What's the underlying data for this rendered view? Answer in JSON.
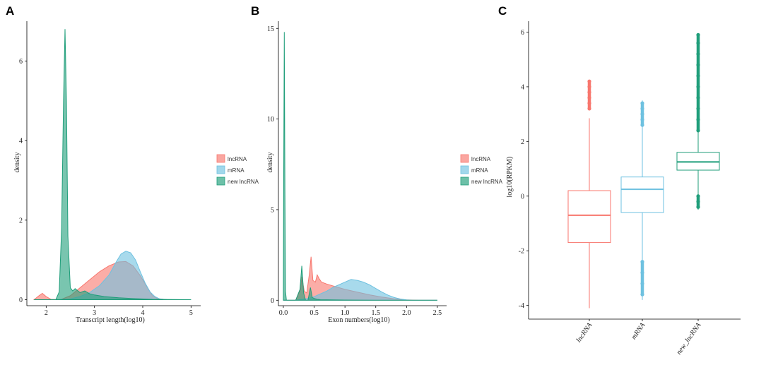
{
  "colors": {
    "lncRNA": "#F8766D",
    "mRNA": "#6EC1E0",
    "new_lncRNA": "#1F9E7A"
  },
  "chart_data": [
    {
      "panel": "A",
      "type": "area",
      "xlabel": "Transcript length(log10)",
      "ylabel": "density",
      "xlim": [
        1.6,
        5.2
      ],
      "ylim": [
        -0.15,
        7.0
      ],
      "xticks": [
        2,
        3,
        4,
        5
      ],
      "yticks": [
        0,
        2,
        4,
        6
      ],
      "legend": [
        "lncRNA",
        "mRNA",
        "new lncRNA"
      ],
      "series": [
        {
          "name": "lncRNA",
          "x": [
            1.75,
            1.85,
            1.92,
            2.0,
            2.1,
            2.3,
            2.5,
            2.7,
            2.9,
            3.1,
            3.3,
            3.5,
            3.65,
            3.8,
            3.95,
            4.1,
            4.2,
            4.3,
            4.5,
            5.0
          ],
          "y": [
            0,
            0.1,
            0.16,
            0.08,
            0.01,
            0.0,
            0.1,
            0.3,
            0.5,
            0.7,
            0.85,
            0.95,
            0.96,
            0.85,
            0.6,
            0.3,
            0.1,
            0.03,
            0,
            0
          ]
        },
        {
          "name": "mRNA",
          "x": [
            1.75,
            2.2,
            2.5,
            2.7,
            2.9,
            3.1,
            3.3,
            3.45,
            3.55,
            3.65,
            3.75,
            3.85,
            3.95,
            4.05,
            4.15,
            4.25,
            4.35,
            4.5,
            5.0
          ],
          "y": [
            0,
            0,
            0.02,
            0.08,
            0.18,
            0.35,
            0.62,
            0.95,
            1.15,
            1.22,
            1.18,
            1.0,
            0.7,
            0.42,
            0.2,
            0.08,
            0.02,
            0,
            0
          ]
        },
        {
          "name": "new lncRNA",
          "x": [
            1.75,
            2.2,
            2.27,
            2.32,
            2.36,
            2.39,
            2.42,
            2.45,
            2.5,
            2.55,
            2.6,
            2.7,
            2.8,
            2.9,
            3.0,
            3.1,
            3.2,
            3.3,
            3.5,
            3.8,
            4.2,
            5.0
          ],
          "y": [
            0,
            0,
            0.2,
            1.8,
            5.0,
            6.8,
            5.0,
            1.6,
            0.3,
            0.22,
            0.28,
            0.18,
            0.22,
            0.15,
            0.12,
            0.1,
            0.08,
            0.07,
            0.05,
            0.03,
            0.01,
            0
          ]
        }
      ]
    },
    {
      "panel": "B",
      "type": "area",
      "xlabel": "Exon numbers(log10)",
      "ylabel": "density",
      "xlim": [
        -0.08,
        2.65
      ],
      "ylim": [
        -0.3,
        15.4
      ],
      "xticks": [
        0.0,
        0.5,
        1.0,
        1.5,
        2.0,
        2.5
      ],
      "yticks": [
        0,
        5,
        10,
        15
      ],
      "legend": [
        "lncRNA",
        "mRNA",
        "new lncRNA"
      ],
      "series": [
        {
          "name": "lncRNA",
          "x": [
            0.0,
            0.2,
            0.28,
            0.3,
            0.34,
            0.38,
            0.42,
            0.45,
            0.48,
            0.52,
            0.55,
            0.58,
            0.62,
            0.7,
            0.8,
            0.9,
            1.0,
            1.2,
            1.4,
            1.6,
            1.8,
            2.0,
            2.2,
            2.5
          ],
          "y": [
            0,
            0,
            0.6,
            1.3,
            0.5,
            0.4,
            1.4,
            2.4,
            1.1,
            1.0,
            1.4,
            1.2,
            1.0,
            0.9,
            0.8,
            0.7,
            0.6,
            0.45,
            0.3,
            0.18,
            0.08,
            0.02,
            0,
            0
          ]
        },
        {
          "name": "mRNA",
          "x": [
            0.0,
            0.2,
            0.3,
            0.4,
            0.5,
            0.6,
            0.7,
            0.8,
            0.9,
            1.0,
            1.1,
            1.2,
            1.3,
            1.4,
            1.5,
            1.6,
            1.7,
            1.8,
            1.9,
            2.0,
            2.1,
            2.3,
            2.5
          ],
          "y": [
            0,
            0,
            0.05,
            0.1,
            0.2,
            0.35,
            0.5,
            0.7,
            0.85,
            1.0,
            1.15,
            1.1,
            1.0,
            0.85,
            0.65,
            0.45,
            0.28,
            0.15,
            0.07,
            0.02,
            0,
            0,
            0
          ]
        },
        {
          "name": "new lncRNA",
          "x": [
            0.0,
            0.005,
            0.015,
            0.025,
            0.035,
            0.05,
            0.1,
            0.2,
            0.27,
            0.3,
            0.33,
            0.36,
            0.4,
            0.44,
            0.47,
            0.5,
            0.55,
            0.6,
            0.8,
            1.0,
            1.5,
            2.5
          ],
          "y": [
            0,
            6,
            14.8,
            6,
            0.5,
            0,
            0,
            0,
            0.6,
            1.9,
            0.4,
            0,
            0,
            0.7,
            0.15,
            0.1,
            0.05,
            0.03,
            0.02,
            0.01,
            0,
            0
          ]
        }
      ]
    },
    {
      "panel": "C",
      "type": "box",
      "xlabel": "",
      "ylabel": "log10(RPKM)",
      "ylim": [
        -4.5,
        6.4
      ],
      "yticks": [
        -4,
        -2,
        0,
        2,
        4,
        6
      ],
      "categories": [
        "lncRNA",
        "mRNA",
        "new_lncRNA"
      ],
      "boxes": [
        {
          "name": "lncRNA",
          "min": -4.1,
          "q1": -1.7,
          "median": -0.7,
          "q3": 0.2,
          "max": 2.85,
          "outliers": [
            3.2,
            3.4,
            3.6,
            3.8,
            4.0,
            4.2
          ]
        },
        {
          "name": "mRNA",
          "min": -3.8,
          "q1": -0.6,
          "median": 0.25,
          "q3": 0.7,
          "max": 3.5,
          "outliers": [
            -2.4,
            -2.8,
            -3.2,
            -3.6,
            2.6,
            2.8,
            3.0,
            3.2,
            3.4
          ]
        },
        {
          "name": "new_lncRNA",
          "min": -0.5,
          "q1": 0.95,
          "median": 1.25,
          "q3": 1.6,
          "max": 5.9,
          "outliers": [
            -0.4,
            -0.2,
            0.0,
            2.4,
            2.8,
            3.2,
            3.6,
            4.0,
            4.4,
            4.8,
            5.2,
            5.6,
            5.9
          ]
        }
      ]
    }
  ]
}
